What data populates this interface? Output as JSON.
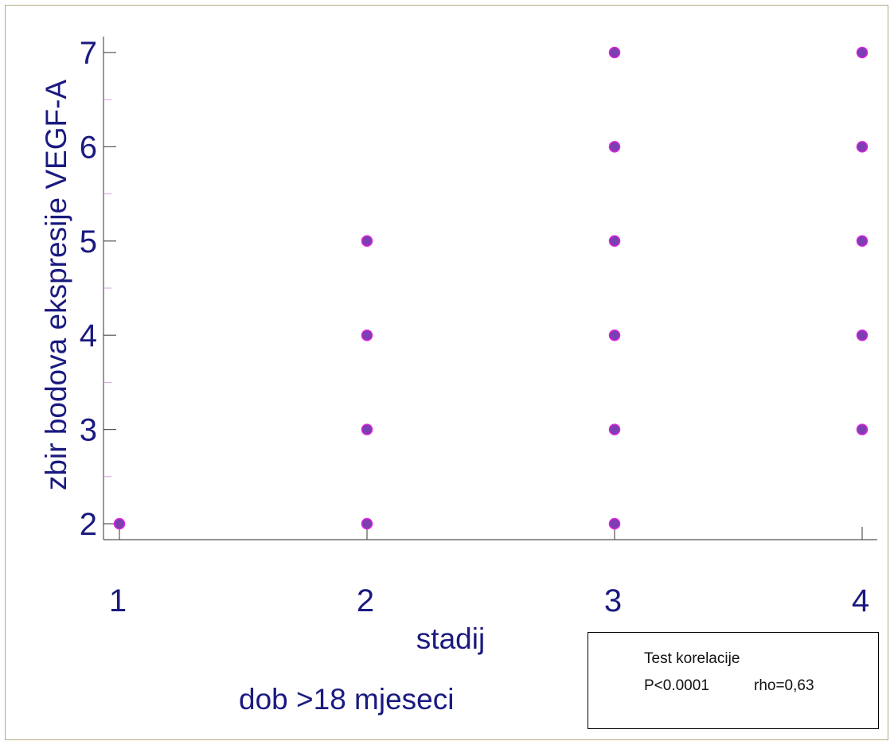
{
  "chart_data": {
    "type": "scatter",
    "xlabel": "stadij",
    "ylabel": "zbir bodova ekspresije VEGF-A",
    "xlim": [
      1,
      4
    ],
    "ylim": [
      2,
      7
    ],
    "x_ticks": [
      "1",
      "2",
      "3",
      "4"
    ],
    "y_ticks": [
      "2",
      "3",
      "4",
      "5",
      "6",
      "7"
    ],
    "grid": false,
    "marker_color": "#7a3fb0",
    "marker_edge_color": "#e020e0",
    "axis_color": "#1a1a80",
    "points": [
      {
        "x": 1,
        "y": 2
      },
      {
        "x": 2,
        "y": 2
      },
      {
        "x": 2,
        "y": 3
      },
      {
        "x": 2,
        "y": 4
      },
      {
        "x": 2,
        "y": 5
      },
      {
        "x": 3,
        "y": 2
      },
      {
        "x": 3,
        "y": 3
      },
      {
        "x": 3,
        "y": 4
      },
      {
        "x": 3,
        "y": 5
      },
      {
        "x": 3,
        "y": 6
      },
      {
        "x": 3,
        "y": 7
      },
      {
        "x": 4,
        "y": 3
      },
      {
        "x": 4,
        "y": 4
      },
      {
        "x": 4,
        "y": 5
      },
      {
        "x": 4,
        "y": 6
      },
      {
        "x": 4,
        "y": 7
      }
    ]
  },
  "annotation": {
    "title": "Test korelacije",
    "p_value": "P<0.0001",
    "rho": "rho=0,63"
  },
  "note": "dob >18 mjeseci"
}
